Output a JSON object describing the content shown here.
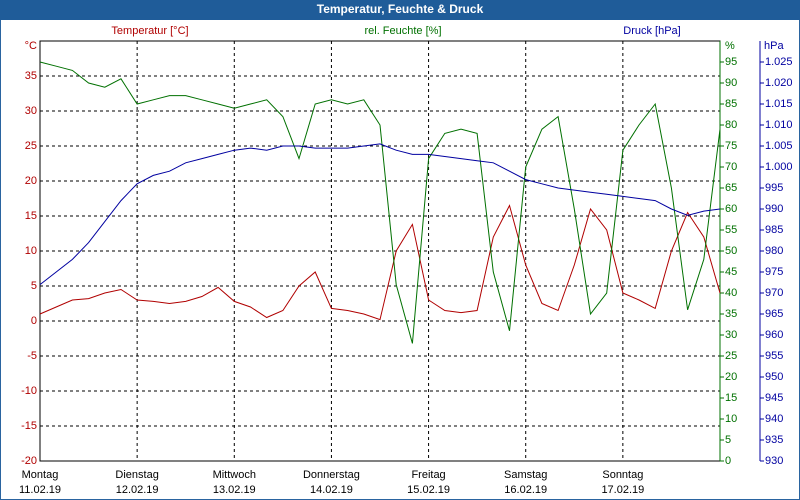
{
  "chart_data": {
    "type": "line",
    "title": "Temperatur, Feuchte & Druck",
    "y_label": "Temperatur [°C]",
    "y2_label": "rel. Feuchte [%]",
    "y3_label": "Druck [hPa]",
    "y_unit": "°C",
    "y2_unit": "%",
    "y3_unit": "hPa",
    "x": [
      0,
      4,
      8,
      12,
      16,
      20,
      24,
      28,
      32,
      36,
      40,
      44,
      48,
      52,
      56,
      60,
      64,
      68,
      72,
      76,
      80,
      84,
      88,
      92,
      96,
      100,
      104,
      108,
      112,
      116,
      120,
      124,
      128,
      132,
      136,
      140,
      144,
      148,
      152,
      156,
      160,
      164,
      168
    ],
    "xlim": [
      0,
      168
    ],
    "xticks": [
      {
        "value": 0,
        "label": "Montag"
      },
      {
        "value": 24,
        "label": "Dienstag"
      },
      {
        "value": 48,
        "label": "Mittwoch"
      },
      {
        "value": 72,
        "label": "Donnerstag"
      },
      {
        "value": 96,
        "label": "Freitag"
      },
      {
        "value": 120,
        "label": "Samstag"
      },
      {
        "value": 144,
        "label": "Sonntag"
      }
    ],
    "xtick_dates": [
      "11.02.19",
      "12.02.19",
      "13.02.19",
      "14.02.19",
      "15.02.19",
      "16.02.19",
      "17.02.19"
    ],
    "ylim": [
      -20,
      40
    ],
    "yticks": [
      -20,
      -15,
      -10,
      -5,
      0,
      5,
      10,
      15,
      20,
      25,
      30,
      35
    ],
    "y2lim": [
      0,
      100
    ],
    "y2ticks": [
      0,
      5,
      10,
      15,
      20,
      25,
      30,
      35,
      40,
      45,
      50,
      55,
      60,
      65,
      70,
      75,
      80,
      85,
      90,
      95
    ],
    "y3lim": [
      930,
      1030
    ],
    "y3ticks": [
      930,
      935,
      940,
      945,
      950,
      955,
      960,
      965,
      970,
      975,
      980,
      985,
      990,
      995,
      {
        "value": 1000,
        "label": "1.000"
      },
      {
        "value": 1005,
        "label": "1.005"
      },
      {
        "value": 1010,
        "label": "1.010"
      },
      {
        "value": 1015,
        "label": "1.015"
      },
      {
        "value": 1020,
        "label": "1.020"
      },
      {
        "value": 1025,
        "label": "1.025"
      }
    ],
    "grid": true,
    "series": [
      {
        "name": "Temperatur",
        "color": "#b00000",
        "axis": "y",
        "values": [
          1.0,
          2.0,
          3.0,
          3.2,
          4.0,
          4.5,
          3.0,
          2.8,
          2.5,
          2.8,
          3.5,
          4.8,
          2.8,
          2.0,
          0.5,
          1.5,
          5.0,
          7.0,
          1.8,
          1.5,
          1.0,
          0.2,
          10.0,
          13.8,
          3.0,
          1.5,
          1.2,
          1.5,
          12.0,
          16.5,
          8.0,
          2.5,
          1.5,
          8.0,
          16.0,
          13.0,
          4.0,
          3.0,
          1.8,
          10.0,
          15.5,
          12.0,
          4.0
        ]
      },
      {
        "name": "rel. Feuchte",
        "color": "#007000",
        "axis": "y2",
        "values": [
          95,
          94,
          93,
          90,
          89,
          91,
          85,
          86,
          87,
          87,
          86,
          85,
          84,
          85,
          86,
          82,
          72,
          85,
          86,
          85,
          86,
          80,
          42,
          28,
          72,
          78,
          79,
          78,
          45,
          31,
          70,
          79,
          82,
          60,
          35,
          40,
          74,
          80,
          85,
          65,
          36,
          48,
          79
        ]
      },
      {
        "name": "Druck",
        "color": "#0000a0",
        "axis": "y3",
        "values": [
          972,
          975,
          978,
          982,
          987,
          992,
          996,
          998,
          999,
          1001,
          1002,
          1003,
          1004,
          1004.5,
          1004,
          1005,
          1005,
          1004.5,
          1004.5,
          1004.5,
          1005,
          1005.5,
          1004,
          1003,
          1003,
          1002.5,
          1002,
          1001.5,
          1001,
          999,
          997,
          996,
          995,
          994.5,
          994,
          993.5,
          993,
          992.5,
          992,
          990,
          988.5,
          989.5,
          990
        ]
      }
    ]
  }
}
